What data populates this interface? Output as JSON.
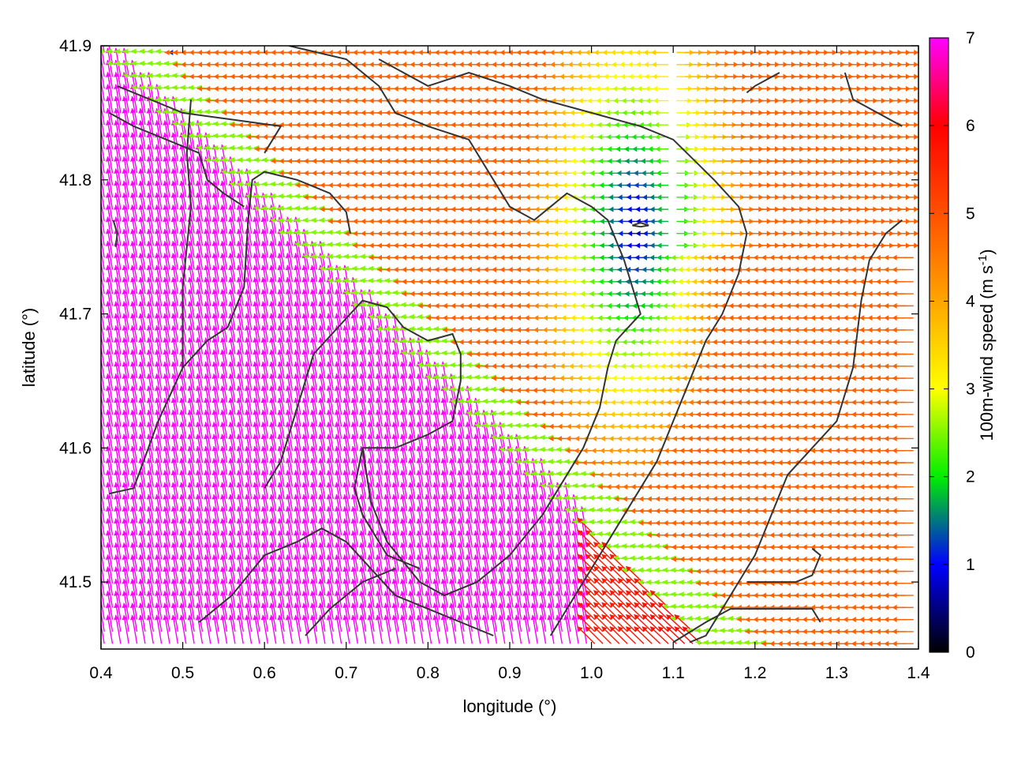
{
  "chart_data": {
    "type": "vector-field",
    "xlabel": "longitude (°)",
    "ylabel": "latitude (°)",
    "colorbar_label_main": "100m-wind speed (m s",
    "colorbar_label_sup": "-1",
    "colorbar_label_close": ")",
    "xlim": [
      0.4,
      1.4
    ],
    "ylim": [
      41.45,
      41.9
    ],
    "x_ticks": [
      {
        "value": 0.4,
        "label": "0.4"
      },
      {
        "value": 0.5,
        "label": "0.5"
      },
      {
        "value": 0.6,
        "label": "0.6"
      },
      {
        "value": 0.7,
        "label": "0.7"
      },
      {
        "value": 0.8,
        "label": "0.8"
      },
      {
        "value": 0.9,
        "label": "0.9"
      },
      {
        "value": 1.0,
        "label": "1.0"
      },
      {
        "value": 1.1,
        "label": "1.1"
      },
      {
        "value": 1.2,
        "label": "1.2"
      },
      {
        "value": 1.3,
        "label": "1.3"
      },
      {
        "value": 1.4,
        "label": "1.4"
      }
    ],
    "y_ticks": [
      {
        "value": 41.5,
        "label": "41.5"
      },
      {
        "value": 41.6,
        "label": "41.6"
      },
      {
        "value": 41.7,
        "label": "41.7"
      },
      {
        "value": 41.8,
        "label": "41.8"
      },
      {
        "value": 41.9,
        "label": "41.9"
      }
    ],
    "colorbar": {
      "range": [
        0,
        7
      ],
      "ticks": [
        {
          "value": 0,
          "label": "0"
        },
        {
          "value": 1,
          "label": "1"
        },
        {
          "value": 2,
          "label": "2"
        },
        {
          "value": 3,
          "label": "3"
        },
        {
          "value": 4,
          "label": "4"
        },
        {
          "value": 5,
          "label": "5"
        },
        {
          "value": 6,
          "label": "6"
        },
        {
          "value": 7,
          "label": "7"
        }
      ],
      "stops": [
        {
          "value": 0,
          "color": "#000000"
        },
        {
          "value": 1,
          "color": "#0000ff"
        },
        {
          "value": 2,
          "color": "#00ee00"
        },
        {
          "value": 3,
          "color": "#ffff00"
        },
        {
          "value": 4,
          "color": "#ffa500"
        },
        {
          "value": 5,
          "color": "#ff5000"
        },
        {
          "value": 6,
          "color": "#ff0000"
        },
        {
          "value": 7,
          "color": "#ff00ff"
        }
      ]
    },
    "grid": false,
    "wind_field": {
      "grid_lon_step": 0.01,
      "grid_lat_step": 0.009,
      "calm_center": {
        "lon": 1.06,
        "lat": 41.765
      },
      "regions": [
        {
          "name": "north-west calm strip",
          "speed": 1.2,
          "direction": "westward"
        },
        {
          "name": "central westward jet",
          "speed": 5.5,
          "direction": "westward"
        },
        {
          "name": "northern band",
          "speed": 3.2,
          "direction": "westward"
        },
        {
          "name": "north-east calm zone",
          "speed": 0.6,
          "direction": "variable"
        },
        {
          "name": "eastern band",
          "speed": 2.5,
          "direction": "eastward"
        },
        {
          "name": "southern sector",
          "speed": 7.0,
          "direction": "north-north-west"
        },
        {
          "name": "south-east sector",
          "speed": 6.0,
          "direction": "north-west"
        }
      ]
    },
    "contours": [
      [
        [
          0.41,
          41.566
        ],
        [
          0.44,
          41.57
        ],
        [
          0.47,
          41.62
        ],
        [
          0.5,
          41.66
        ],
        [
          0.53,
          41.68
        ],
        [
          0.555,
          41.69
        ],
        [
          0.575,
          41.72
        ],
        [
          0.58,
          41.77
        ],
        [
          0.585,
          41.8
        ],
        [
          0.6,
          41.806
        ],
        [
          0.64,
          41.8
        ],
        [
          0.68,
          41.79
        ],
        [
          0.7,
          41.776
        ],
        [
          0.705,
          41.76
        ]
      ],
      [
        [
          0.41,
          41.85
        ],
        [
          0.44,
          41.84
        ],
        [
          0.48,
          41.83
        ],
        [
          0.52,
          41.82
        ],
        [
          0.53,
          41.8
        ],
        [
          0.55,
          41.79
        ],
        [
          0.575,
          41.78
        ]
      ],
      [
        [
          0.42,
          41.87
        ],
        [
          0.46,
          41.86
        ],
        [
          0.5,
          41.85
        ],
        [
          0.56,
          41.845
        ],
        [
          0.62,
          41.84
        ],
        [
          0.6,
          41.82
        ]
      ],
      [
        [
          0.415,
          41.77
        ],
        [
          0.42,
          41.76
        ],
        [
          0.418,
          41.75
        ]
      ],
      [
        [
          0.5,
          41.66
        ],
        [
          0.5,
          41.72
        ],
        [
          0.51,
          41.78
        ],
        [
          0.505,
          41.82
        ],
        [
          0.51,
          41.86
        ]
      ],
      [
        [
          0.6,
          41.57
        ],
        [
          0.62,
          41.59
        ],
        [
          0.64,
          41.63
        ],
        [
          0.66,
          41.67
        ],
        [
          0.69,
          41.69
        ],
        [
          0.72,
          41.71
        ],
        [
          0.75,
          41.705
        ],
        [
          0.77,
          41.69
        ],
        [
          0.8,
          41.68
        ],
        [
          0.83,
          41.685
        ],
        [
          0.84,
          41.67
        ],
        [
          0.84,
          41.65
        ],
        [
          0.83,
          41.62
        ],
        [
          0.8,
          41.61
        ],
        [
          0.76,
          41.6
        ],
        [
          0.72,
          41.6
        ],
        [
          0.71,
          41.57
        ],
        [
          0.72,
          41.55
        ],
        [
          0.75,
          41.52
        ],
        [
          0.79,
          41.51
        ]
      ],
      [
        [
          0.63,
          41.9
        ],
        [
          0.7,
          41.89
        ],
        [
          0.74,
          41.87
        ],
        [
          0.76,
          41.85
        ],
        [
          0.8,
          41.84
        ],
        [
          0.85,
          41.83
        ],
        [
          0.88,
          41.8
        ],
        [
          0.9,
          41.78
        ],
        [
          0.93,
          41.77
        ],
        [
          0.95,
          41.78
        ],
        [
          0.97,
          41.79
        ],
        [
          1.0,
          41.78
        ],
        [
          1.02,
          41.77
        ],
        [
          1.04,
          41.74
        ],
        [
          1.05,
          41.72
        ],
        [
          1.06,
          41.7
        ],
        [
          1.03,
          41.68
        ],
        [
          1.02,
          41.66
        ],
        [
          1.01,
          41.63
        ],
        [
          0.99,
          41.6
        ],
        [
          0.97,
          41.58
        ],
        [
          0.94,
          41.55
        ],
        [
          0.9,
          41.52
        ],
        [
          0.86,
          41.5
        ],
        [
          0.82,
          41.49
        ],
        [
          0.79,
          41.5
        ],
        [
          0.75,
          41.53
        ],
        [
          0.73,
          41.56
        ],
        [
          0.72,
          41.6
        ]
      ],
      [
        [
          0.74,
          41.89
        ],
        [
          0.77,
          41.88
        ],
        [
          0.8,
          41.87
        ],
        [
          0.85,
          41.88
        ],
        [
          0.9,
          41.87
        ],
        [
          0.94,
          41.86
        ],
        [
          1.0,
          41.85
        ],
        [
          1.06,
          41.84
        ],
        [
          1.1,
          41.83
        ],
        [
          1.15,
          41.8
        ],
        [
          1.18,
          41.78
        ],
        [
          1.19,
          41.76
        ],
        [
          1.18,
          41.73
        ],
        [
          1.16,
          41.7
        ],
        [
          1.14,
          41.68
        ],
        [
          1.12,
          41.65
        ],
        [
          1.1,
          41.62
        ],
        [
          1.08,
          41.59
        ],
        [
          1.05,
          41.56
        ],
        [
          1.02,
          41.53
        ],
        [
          0.99,
          41.5
        ],
        [
          0.97,
          41.48
        ],
        [
          0.95,
          41.46
        ]
      ],
      [
        [
          1.06,
          41.765
        ],
        [
          1.07,
          41.766
        ],
        [
          1.06,
          41.768
        ],
        [
          1.05,
          41.766
        ],
        [
          1.06,
          41.765
        ]
      ],
      [
        [
          1.31,
          41.88
        ],
        [
          1.32,
          41.86
        ],
        [
          1.35,
          41.85
        ],
        [
          1.38,
          41.84
        ]
      ],
      [
        [
          1.23,
          41.88
        ],
        [
          1.2,
          41.87
        ],
        [
          1.19,
          41.865
        ]
      ],
      [
        [
          1.38,
          41.77
        ],
        [
          1.36,
          41.76
        ],
        [
          1.34,
          41.74
        ],
        [
          1.33,
          41.71
        ],
        [
          1.32,
          41.66
        ],
        [
          1.3,
          41.62
        ],
        [
          1.27,
          41.6
        ],
        [
          1.24,
          41.58
        ],
        [
          1.22,
          41.55
        ],
        [
          1.2,
          41.52
        ],
        [
          1.18,
          41.5
        ],
        [
          1.16,
          41.48
        ],
        [
          1.14,
          41.46
        ],
        [
          1.12,
          41.455
        ]
      ],
      [
        [
          1.19,
          41.5
        ],
        [
          1.22,
          41.5
        ],
        [
          1.25,
          41.5
        ],
        [
          1.27,
          41.505
        ],
        [
          1.28,
          41.52
        ],
        [
          1.27,
          41.525
        ]
      ],
      [
        [
          1.1,
          41.455
        ],
        [
          1.14,
          41.47
        ],
        [
          1.17,
          41.48
        ],
        [
          1.2,
          41.48
        ],
        [
          1.24,
          41.48
        ],
        [
          1.27,
          41.48
        ],
        [
          1.28,
          41.47
        ]
      ],
      [
        [
          0.52,
          41.47
        ],
        [
          0.56,
          41.49
        ],
        [
          0.6,
          41.52
        ],
        [
          0.64,
          41.53
        ],
        [
          0.67,
          41.54
        ],
        [
          0.7,
          41.53
        ],
        [
          0.73,
          41.51
        ],
        [
          0.76,
          41.49
        ],
        [
          0.8,
          41.48
        ],
        [
          0.84,
          41.47
        ],
        [
          0.88,
          41.46
        ]
      ],
      [
        [
          0.65,
          41.46
        ],
        [
          0.68,
          41.48
        ],
        [
          0.72,
          41.5
        ],
        [
          0.76,
          41.51
        ]
      ]
    ]
  }
}
